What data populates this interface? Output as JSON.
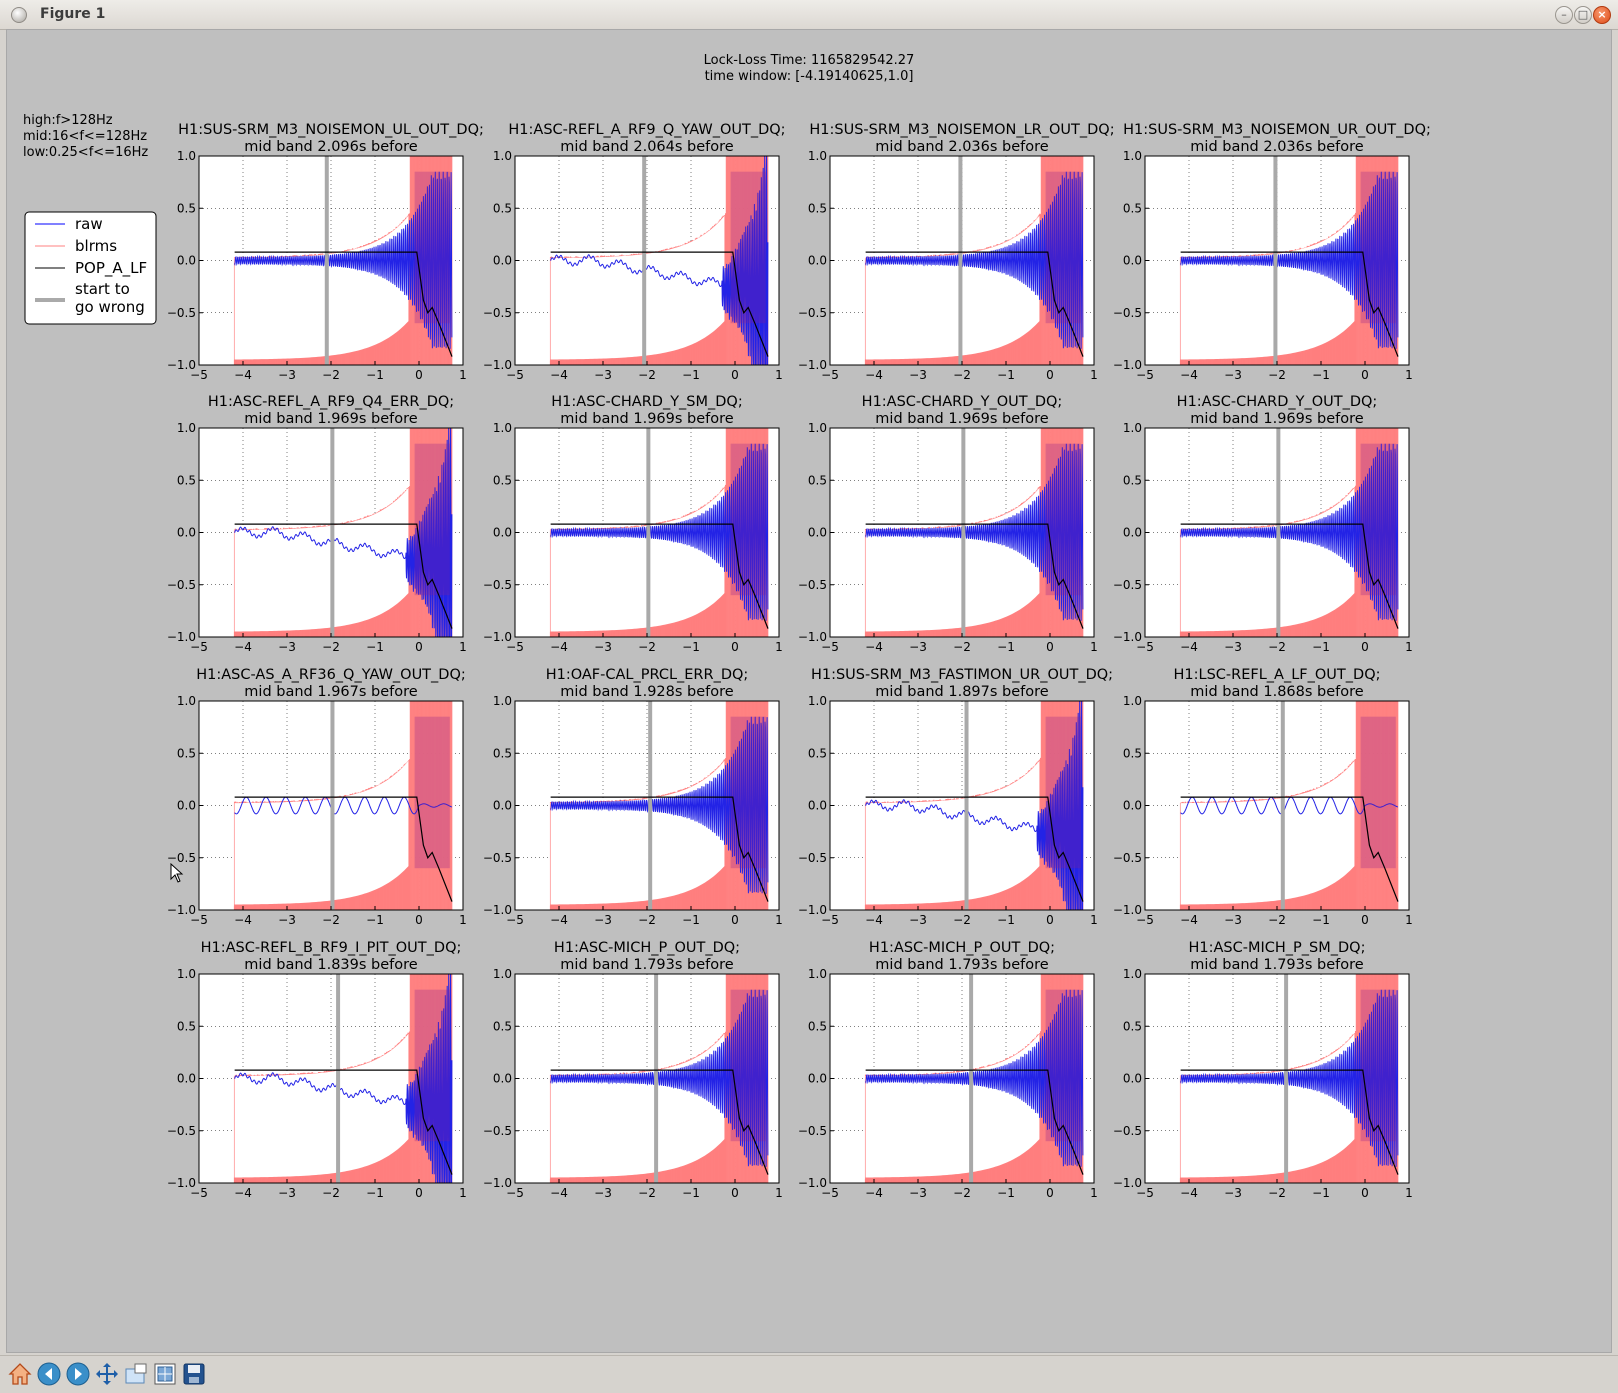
{
  "window": {
    "title": "Figure 1",
    "buttons": [
      "minimize",
      "maximize",
      "close"
    ]
  },
  "figure": {
    "suptitle_line1": "Lock-Loss Time: 1165829542.27",
    "suptitle_line2": "time window: [-4.19140625,1.0]",
    "band_info": [
      "high:f>128Hz",
      "mid:16<f<=128Hz",
      "low:0.25<f<=16Hz"
    ],
    "legend": [
      {
        "label": "raw",
        "color": "#0000ff"
      },
      {
        "label": "blrms",
        "color": "#ff8080"
      },
      {
        "label": "POP_A_LF",
        "color": "#000000"
      },
      {
        "label": "start to\ngo wrong",
        "color": "#aaaaaa"
      }
    ],
    "colors": {
      "raw": "#2323e6",
      "blrms": "#ff7f7f",
      "overlap": "#8c1c8c",
      "pop": "#000000",
      "marker": "#a9a9a9",
      "background": "#bfbfbf"
    }
  },
  "chart_data": [
    {
      "type": "line",
      "title": "H1:SUS-SRM_M3_NOISEMON_UL_OUT_DQ;",
      "subtitle": "mid band 2.096s before",
      "marker_x": -2.096,
      "style": "grow",
      "xlim": [
        -5,
        1
      ],
      "ylim": [
        -1,
        1
      ],
      "xticks": [
        -5,
        -4,
        -3,
        -2,
        -1,
        0,
        1
      ],
      "yticks": [
        1.0,
        0.5,
        0.0,
        -0.5,
        -1.0
      ],
      "grid": true,
      "series": [
        {
          "name": "raw"
        },
        {
          "name": "blrms"
        },
        {
          "name": "POP_A_LF",
          "x": [
            -4.19,
            -0.05,
            0.1,
            0.2,
            0.3,
            0.45,
            0.75
          ],
          "y": [
            0.08,
            0.08,
            -0.38,
            -0.5,
            -0.45,
            -0.6,
            -0.92
          ]
        }
      ]
    },
    {
      "type": "line",
      "title": "H1:ASC-REFL_A_RF9_Q_YAW_OUT_DQ;",
      "subtitle": "mid band 2.064s before",
      "marker_x": -2.064,
      "style": "drift",
      "xlim": [
        -5,
        1
      ],
      "ylim": [
        -1,
        1
      ],
      "xticks": [
        -5,
        -4,
        -3,
        -2,
        -1,
        0,
        1
      ],
      "yticks": [
        1.0,
        0.5,
        0.0,
        -0.5,
        -1.0
      ],
      "grid": true,
      "series": [
        {
          "name": "raw"
        },
        {
          "name": "blrms"
        },
        {
          "name": "POP_A_LF",
          "x": [
            -4.19,
            -0.05,
            0.1,
            0.2,
            0.3,
            0.45,
            0.75
          ],
          "y": [
            0.08,
            0.08,
            -0.38,
            -0.5,
            -0.45,
            -0.6,
            -0.92
          ]
        }
      ]
    },
    {
      "type": "line",
      "title": "H1:SUS-SRM_M3_NOISEMON_LR_OUT_DQ;",
      "subtitle": "mid band 2.036s before",
      "marker_x": -2.036,
      "style": "grow",
      "xlim": [
        -5,
        1
      ],
      "ylim": [
        -1,
        1
      ],
      "xticks": [
        -5,
        -4,
        -3,
        -2,
        -1,
        0,
        1
      ],
      "yticks": [
        1.0,
        0.5,
        0.0,
        -0.5,
        -1.0
      ],
      "grid": true,
      "series": [
        {
          "name": "raw"
        },
        {
          "name": "blrms"
        },
        {
          "name": "POP_A_LF",
          "x": [
            -4.19,
            -0.05,
            0.1,
            0.2,
            0.3,
            0.45,
            0.75
          ],
          "y": [
            0.08,
            0.08,
            -0.38,
            -0.5,
            -0.45,
            -0.6,
            -0.92
          ]
        }
      ]
    },
    {
      "type": "line",
      "title": "H1:SUS-SRM_M3_NOISEMON_UR_OUT_DQ;",
      "subtitle": "mid band 2.036s before",
      "marker_x": -2.036,
      "style": "grow",
      "xlim": [
        -5,
        1
      ],
      "ylim": [
        -1,
        1
      ],
      "xticks": [
        -5,
        -4,
        -3,
        -2,
        -1,
        0,
        1
      ],
      "yticks": [
        1.0,
        0.5,
        0.0,
        -0.5,
        -1.0
      ],
      "grid": true,
      "series": [
        {
          "name": "raw"
        },
        {
          "name": "blrms"
        },
        {
          "name": "POP_A_LF",
          "x": [
            -4.19,
            -0.05,
            0.1,
            0.2,
            0.3,
            0.45,
            0.75
          ],
          "y": [
            0.08,
            0.08,
            -0.38,
            -0.5,
            -0.45,
            -0.6,
            -0.92
          ]
        }
      ]
    },
    {
      "type": "line",
      "title": "H1:ASC-REFL_A_RF9_Q4_ERR_DQ;",
      "subtitle": "mid band 1.969s before",
      "marker_x": -1.969,
      "style": "drift",
      "xlim": [
        -5,
        1
      ],
      "ylim": [
        -1,
        1
      ],
      "xticks": [
        -5,
        -4,
        -3,
        -2,
        -1,
        0,
        1
      ],
      "yticks": [
        1.0,
        0.5,
        0.0,
        -0.5,
        -1.0
      ],
      "grid": true,
      "series": [
        {
          "name": "raw"
        },
        {
          "name": "blrms"
        },
        {
          "name": "POP_A_LF",
          "x": [
            -4.19,
            -0.05,
            0.1,
            0.2,
            0.3,
            0.45,
            0.75
          ],
          "y": [
            0.08,
            0.08,
            -0.38,
            -0.5,
            -0.45,
            -0.6,
            -0.92
          ]
        }
      ]
    },
    {
      "type": "line",
      "title": "H1:ASC-CHARD_Y_SM_DQ;",
      "subtitle": "mid band 1.969s before",
      "marker_x": -1.969,
      "style": "grow",
      "xlim": [
        -5,
        1
      ],
      "ylim": [
        -1,
        1
      ],
      "xticks": [
        -5,
        -4,
        -3,
        -2,
        -1,
        0,
        1
      ],
      "yticks": [
        1.0,
        0.5,
        0.0,
        -0.5,
        -1.0
      ],
      "grid": true,
      "series": [
        {
          "name": "raw"
        },
        {
          "name": "blrms"
        },
        {
          "name": "POP_A_LF",
          "x": [
            -4.19,
            -0.05,
            0.1,
            0.2,
            0.3,
            0.45,
            0.75
          ],
          "y": [
            0.08,
            0.08,
            -0.38,
            -0.5,
            -0.45,
            -0.6,
            -0.92
          ]
        }
      ]
    },
    {
      "type": "line",
      "title": "H1:ASC-CHARD_Y_OUT_DQ;",
      "subtitle": "mid band 1.969s before",
      "marker_x": -1.969,
      "style": "grow",
      "xlim": [
        -5,
        1
      ],
      "ylim": [
        -1,
        1
      ],
      "xticks": [
        -5,
        -4,
        -3,
        -2,
        -1,
        0,
        1
      ],
      "yticks": [
        1.0,
        0.5,
        0.0,
        -0.5,
        -1.0
      ],
      "grid": true,
      "series": [
        {
          "name": "raw"
        },
        {
          "name": "blrms"
        },
        {
          "name": "POP_A_LF",
          "x": [
            -4.19,
            -0.05,
            0.1,
            0.2,
            0.3,
            0.45,
            0.75
          ],
          "y": [
            0.08,
            0.08,
            -0.38,
            -0.5,
            -0.45,
            -0.6,
            -0.92
          ]
        }
      ]
    },
    {
      "type": "line",
      "title": "H1:ASC-CHARD_Y_OUT_DQ;",
      "subtitle": "mid band 1.969s before",
      "marker_x": -1.969,
      "style": "grow",
      "xlim": [
        -5,
        1
      ],
      "ylim": [
        -1,
        1
      ],
      "xticks": [
        -5,
        -4,
        -3,
        -2,
        -1,
        0,
        1
      ],
      "yticks": [
        1.0,
        0.5,
        0.0,
        -0.5,
        -1.0
      ],
      "grid": true,
      "series": [
        {
          "name": "raw"
        },
        {
          "name": "blrms"
        },
        {
          "name": "POP_A_LF",
          "x": [
            -4.19,
            -0.05,
            0.1,
            0.2,
            0.3,
            0.45,
            0.75
          ],
          "y": [
            0.08,
            0.08,
            -0.38,
            -0.5,
            -0.45,
            -0.6,
            -0.92
          ]
        }
      ]
    },
    {
      "type": "line",
      "title": "H1:ASC-AS_A_RF36_Q_YAW_OUT_DQ;",
      "subtitle": "mid band 1.967s before",
      "marker_x": -1.967,
      "style": "wave",
      "xlim": [
        -5,
        1
      ],
      "ylim": [
        -1,
        1
      ],
      "xticks": [
        -5,
        -4,
        -3,
        -2,
        -1,
        0,
        1
      ],
      "yticks": [
        1.0,
        0.5,
        0.0,
        -0.5,
        -1.0
      ],
      "grid": true,
      "series": [
        {
          "name": "raw"
        },
        {
          "name": "blrms"
        },
        {
          "name": "POP_A_LF",
          "x": [
            -4.19,
            -0.05,
            0.1,
            0.2,
            0.3,
            0.45,
            0.75
          ],
          "y": [
            0.08,
            0.08,
            -0.38,
            -0.5,
            -0.45,
            -0.6,
            -0.92
          ]
        }
      ]
    },
    {
      "type": "line",
      "title": "H1:OAF-CAL_PRCL_ERR_DQ;",
      "subtitle": "mid band 1.928s before",
      "marker_x": -1.928,
      "style": "grow",
      "xlim": [
        -5,
        1
      ],
      "ylim": [
        -1,
        1
      ],
      "xticks": [
        -5,
        -4,
        -3,
        -2,
        -1,
        0,
        1
      ],
      "yticks": [
        1.0,
        0.5,
        0.0,
        -0.5,
        -1.0
      ],
      "grid": true,
      "series": [
        {
          "name": "raw"
        },
        {
          "name": "blrms"
        },
        {
          "name": "POP_A_LF",
          "x": [
            -4.19,
            -0.05,
            0.1,
            0.2,
            0.3,
            0.45,
            0.75
          ],
          "y": [
            0.08,
            0.08,
            -0.38,
            -0.5,
            -0.45,
            -0.6,
            -0.92
          ]
        }
      ]
    },
    {
      "type": "line",
      "title": "H1:SUS-SRM_M3_FASTIMON_UR_OUT_DQ;",
      "subtitle": "mid band 1.897s before",
      "marker_x": -1.897,
      "style": "drift",
      "xlim": [
        -5,
        1
      ],
      "ylim": [
        -1,
        1
      ],
      "xticks": [
        -5,
        -4,
        -3,
        -2,
        -1,
        0,
        1
      ],
      "yticks": [
        1.0,
        0.5,
        0.0,
        -0.5,
        -1.0
      ],
      "grid": true,
      "series": [
        {
          "name": "raw"
        },
        {
          "name": "blrms"
        },
        {
          "name": "POP_A_LF",
          "x": [
            -4.19,
            -0.05,
            0.1,
            0.2,
            0.3,
            0.45,
            0.75
          ],
          "y": [
            0.08,
            0.08,
            -0.38,
            -0.5,
            -0.45,
            -0.6,
            -0.92
          ]
        }
      ]
    },
    {
      "type": "line",
      "title": "H1:LSC-REFL_A_LF_OUT_DQ;",
      "subtitle": "mid band 1.868s before",
      "marker_x": -1.868,
      "style": "wave",
      "xlim": [
        -5,
        1
      ],
      "ylim": [
        -1,
        1
      ],
      "xticks": [
        -5,
        -4,
        -3,
        -2,
        -1,
        0,
        1
      ],
      "yticks": [
        1.0,
        0.5,
        0.0,
        -0.5,
        -1.0
      ],
      "grid": true,
      "series": [
        {
          "name": "raw"
        },
        {
          "name": "blrms"
        },
        {
          "name": "POP_A_LF",
          "x": [
            -4.19,
            -0.05,
            0.1,
            0.2,
            0.3,
            0.45,
            0.75
          ],
          "y": [
            0.08,
            0.08,
            -0.38,
            -0.5,
            -0.45,
            -0.6,
            -0.92
          ]
        }
      ]
    },
    {
      "type": "line",
      "title": "H1:ASC-REFL_B_RF9_I_PIT_OUT_DQ;",
      "subtitle": "mid band 1.839s before",
      "marker_x": -1.839,
      "style": "drift",
      "xlim": [
        -5,
        1
      ],
      "ylim": [
        -1,
        1
      ],
      "xticks": [
        -5,
        -4,
        -3,
        -2,
        -1,
        0,
        1
      ],
      "yticks": [
        1.0,
        0.5,
        0.0,
        -0.5,
        -1.0
      ],
      "grid": true,
      "series": [
        {
          "name": "raw"
        },
        {
          "name": "blrms"
        },
        {
          "name": "POP_A_LF",
          "x": [
            -4.19,
            -0.05,
            0.1,
            0.2,
            0.3,
            0.45,
            0.75
          ],
          "y": [
            0.08,
            0.08,
            -0.38,
            -0.5,
            -0.45,
            -0.6,
            -0.92
          ]
        }
      ]
    },
    {
      "type": "line",
      "title": "H1:ASC-MICH_P_OUT_DQ;",
      "subtitle": "mid band 1.793s before",
      "marker_x": -1.793,
      "style": "grow",
      "xlim": [
        -5,
        1
      ],
      "ylim": [
        -1,
        1
      ],
      "xticks": [
        -5,
        -4,
        -3,
        -2,
        -1,
        0,
        1
      ],
      "yticks": [
        1.0,
        0.5,
        0.0,
        -0.5,
        -1.0
      ],
      "grid": true,
      "series": [
        {
          "name": "raw"
        },
        {
          "name": "blrms"
        },
        {
          "name": "POP_A_LF",
          "x": [
            -4.19,
            -0.05,
            0.1,
            0.2,
            0.3,
            0.45,
            0.75
          ],
          "y": [
            0.08,
            0.08,
            -0.38,
            -0.5,
            -0.45,
            -0.6,
            -0.92
          ]
        }
      ]
    },
    {
      "type": "line",
      "title": "H1:ASC-MICH_P_OUT_DQ;",
      "subtitle": "mid band 1.793s before",
      "marker_x": -1.793,
      "style": "grow",
      "xlim": [
        -5,
        1
      ],
      "ylim": [
        -1,
        1
      ],
      "xticks": [
        -5,
        -4,
        -3,
        -2,
        -1,
        0,
        1
      ],
      "yticks": [
        1.0,
        0.5,
        0.0,
        -0.5,
        -1.0
      ],
      "grid": true,
      "series": [
        {
          "name": "raw"
        },
        {
          "name": "blrms"
        },
        {
          "name": "POP_A_LF",
          "x": [
            -4.19,
            -0.05,
            0.1,
            0.2,
            0.3,
            0.45,
            0.75
          ],
          "y": [
            0.08,
            0.08,
            -0.38,
            -0.5,
            -0.45,
            -0.6,
            -0.92
          ]
        }
      ]
    },
    {
      "type": "line",
      "title": "H1:ASC-MICH_P_SM_DQ;",
      "subtitle": "mid band 1.793s before",
      "marker_x": -1.793,
      "style": "grow",
      "xlim": [
        -5,
        1
      ],
      "ylim": [
        -1,
        1
      ],
      "xticks": [
        -5,
        -4,
        -3,
        -2,
        -1,
        0,
        1
      ],
      "yticks": [
        1.0,
        0.5,
        0.0,
        -0.5,
        -1.0
      ],
      "grid": true,
      "series": [
        {
          "name": "raw"
        },
        {
          "name": "blrms"
        },
        {
          "name": "POP_A_LF",
          "x": [
            -4.19,
            -0.05,
            0.1,
            0.2,
            0.3,
            0.45,
            0.75
          ],
          "y": [
            0.08,
            0.08,
            -0.38,
            -0.5,
            -0.45,
            -0.6,
            -0.92
          ]
        }
      ]
    }
  ],
  "toolbar": {
    "buttons": [
      {
        "name": "home-icon",
        "tooltip": "Reset original view"
      },
      {
        "name": "back-icon",
        "tooltip": "Back to previous view"
      },
      {
        "name": "forward-icon",
        "tooltip": "Forward to next view"
      },
      {
        "name": "pan-icon",
        "tooltip": "Pan axes"
      },
      {
        "name": "zoom-icon",
        "tooltip": "Zoom to rectangle"
      },
      {
        "name": "subplots-icon",
        "tooltip": "Configure subplots"
      },
      {
        "name": "save-icon",
        "tooltip": "Save the figure"
      }
    ]
  }
}
